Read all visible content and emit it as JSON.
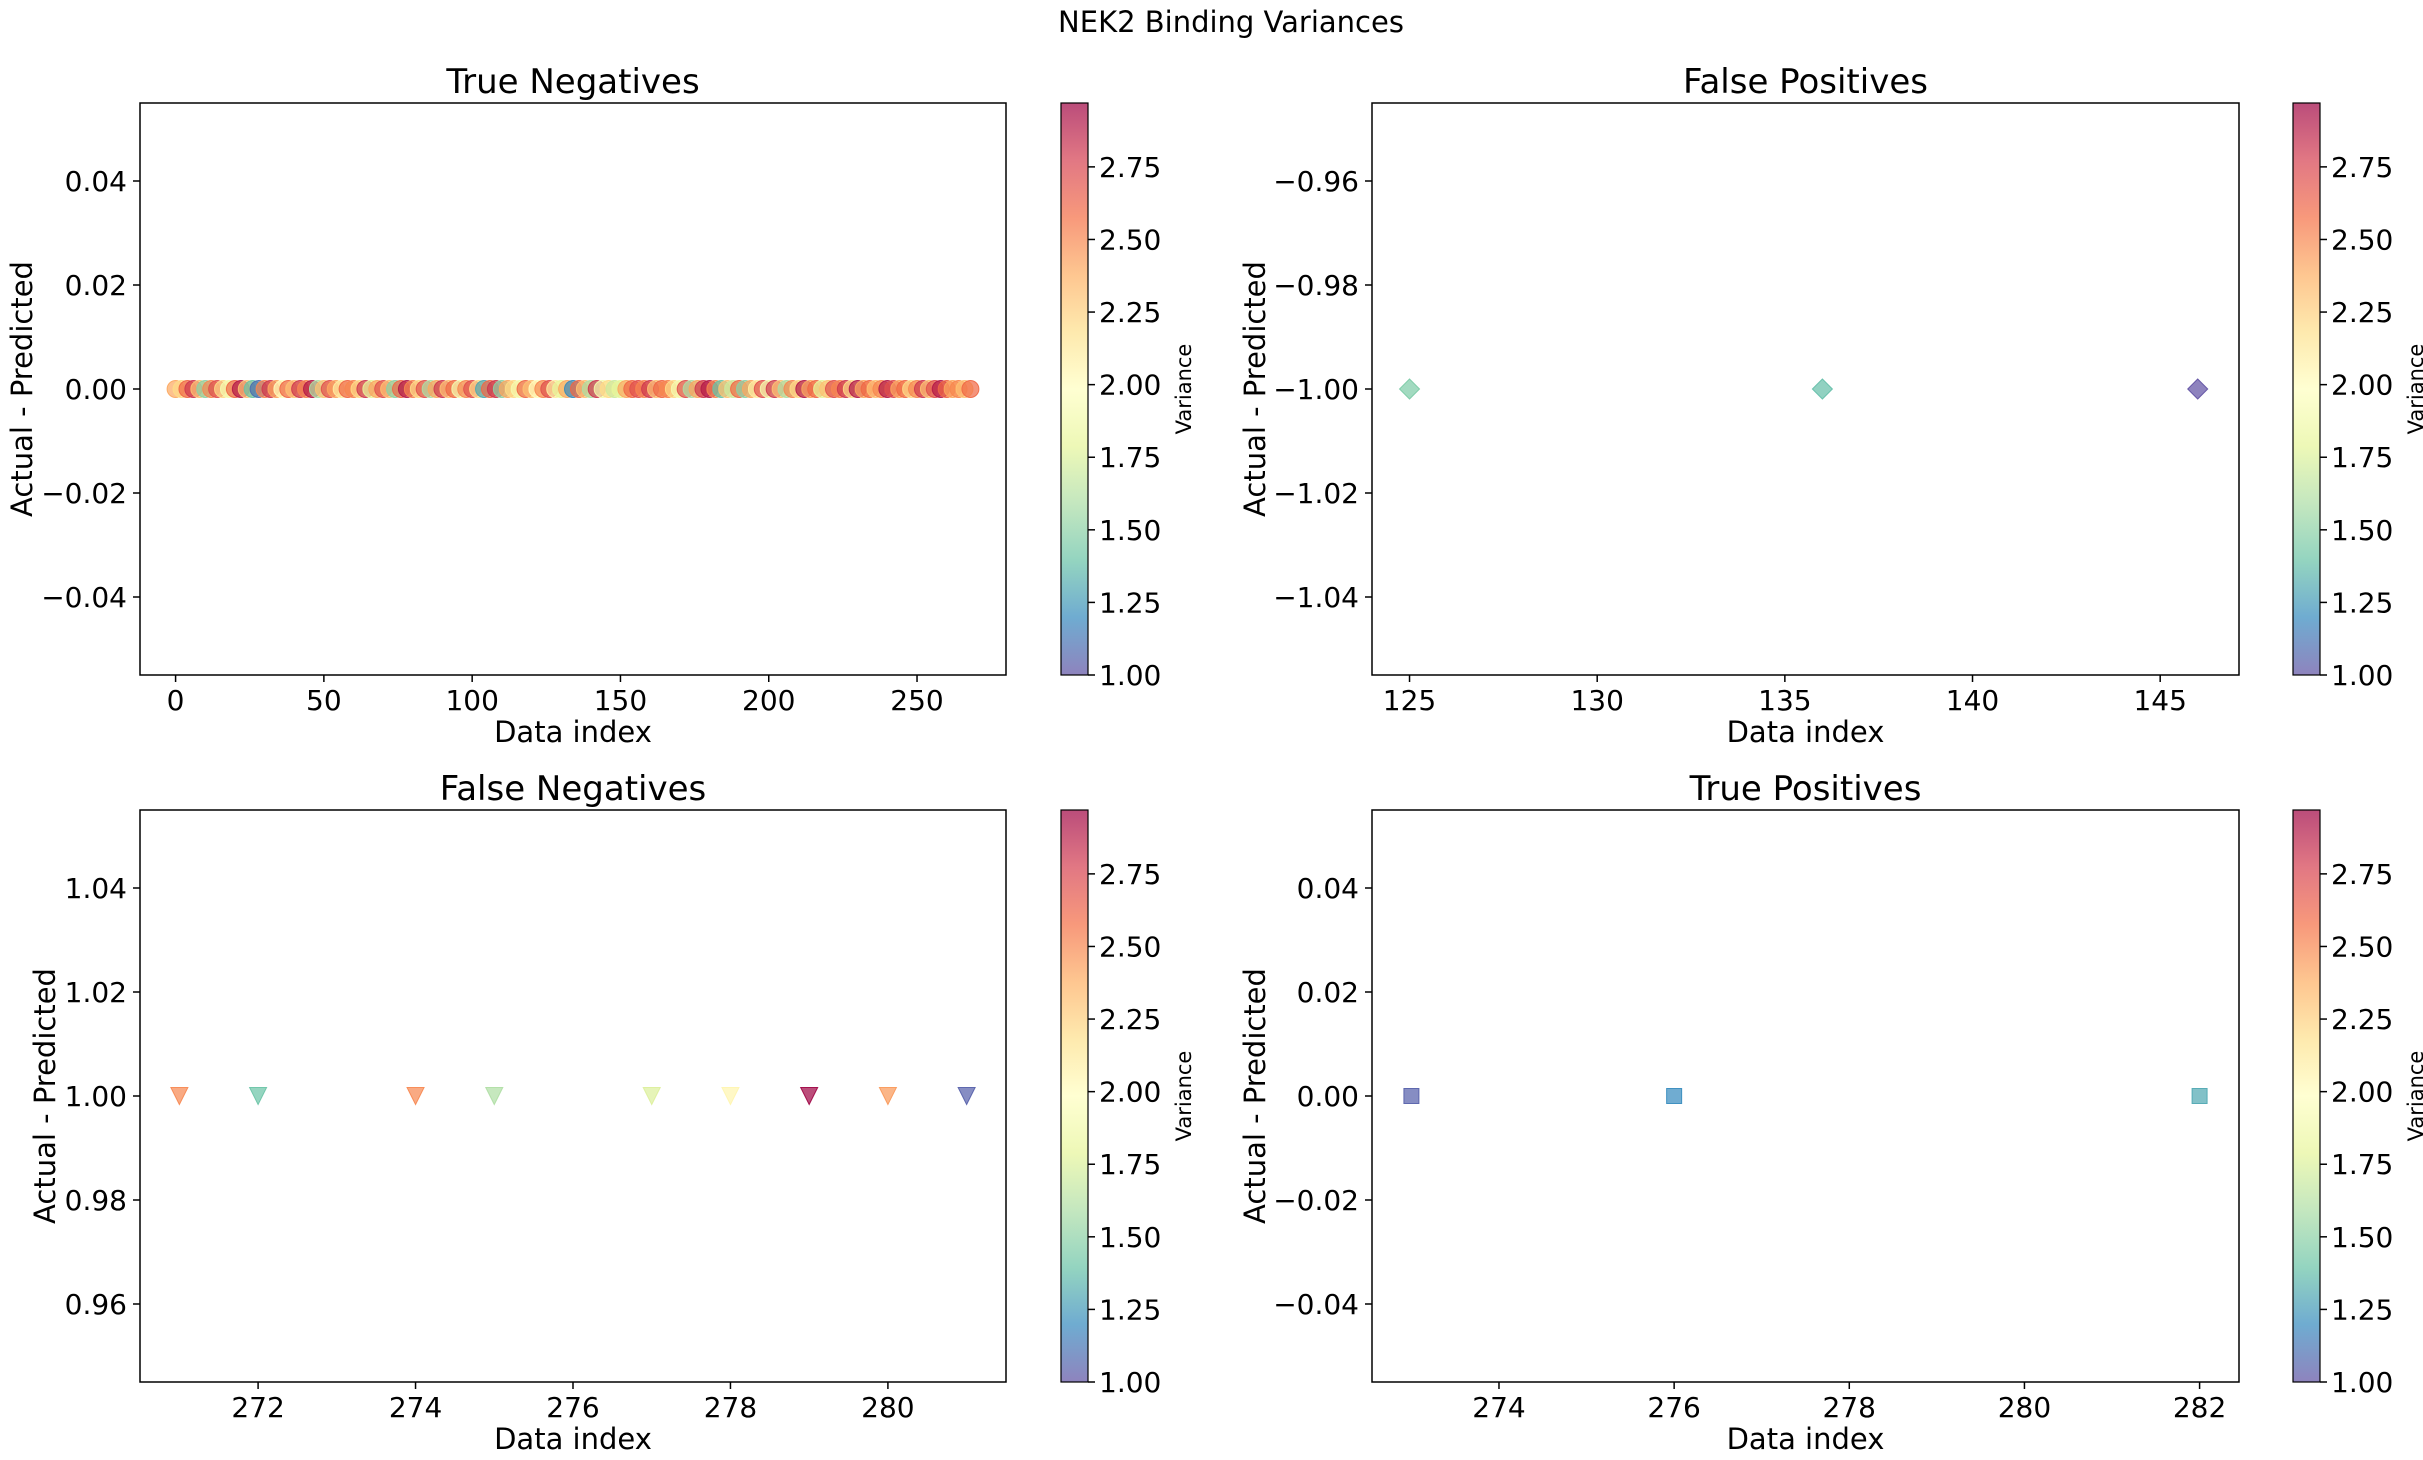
{
  "suptitle": "NEK2 Binding Variances",
  "colorbar_label": "Variance",
  "colorbar_ticks": [
    "1.00",
    "1.25",
    "1.50",
    "1.75",
    "2.00",
    "2.25",
    "2.50",
    "2.75"
  ],
  "colorbar_range": [
    1.0,
    2.97
  ],
  "colormap": [
    "#5e4fa2",
    "#3288bd",
    "#66c2a5",
    "#abdda4",
    "#e6f598",
    "#ffffbf",
    "#fee08b",
    "#fdae61",
    "#f46d43",
    "#d53e4f",
    "#9e0142"
  ],
  "colormap_name": "Spectral_r",
  "point_alpha": 0.7,
  "chart_data": [
    {
      "type": "scatter",
      "title": "True Negatives",
      "xlabel": "Data index",
      "ylabel": "Actual - Predicted",
      "marker": "circle",
      "xlim": [
        -12,
        280
      ],
      "ylim": [
        -0.055,
        0.055
      ],
      "xticks": [
        0,
        50,
        100,
        150,
        200,
        250
      ],
      "yticks": [
        -0.04,
        -0.02,
        0.0,
        0.02,
        0.04
      ],
      "ytick_labels": [
        "−0.04",
        "−0.02",
        "0.00",
        "0.02",
        "0.04"
      ],
      "x": [
        0,
        2,
        4,
        6,
        8,
        10,
        12,
        14,
        16,
        18,
        20,
        22,
        24,
        26,
        28,
        30,
        32,
        34,
        36,
        38,
        40,
        42,
        44,
        46,
        48,
        50,
        52,
        54,
        56,
        58,
        60,
        62,
        64,
        66,
        68,
        70,
        72,
        74,
        76,
        78,
        80,
        82,
        84,
        86,
        88,
        90,
        92,
        94,
        96,
        98,
        100,
        102,
        104,
        106,
        108,
        110,
        112,
        114,
        116,
        118,
        120,
        122,
        124,
        126,
        128,
        130,
        132,
        134,
        136,
        138,
        140,
        142,
        144,
        146,
        148,
        150,
        152,
        154,
        156,
        158,
        160,
        162,
        164,
        166,
        168,
        170,
        172,
        174,
        176,
        178,
        180,
        182,
        184,
        186,
        188,
        190,
        192,
        194,
        196,
        198,
        200,
        202,
        204,
        206,
        208,
        210,
        212,
        214,
        216,
        218,
        220,
        222,
        224,
        226,
        228,
        230,
        232,
        234,
        236,
        238,
        240,
        242,
        244,
        246,
        248,
        250,
        252,
        254,
        256,
        258,
        260,
        262,
        264,
        266,
        268
      ],
      "y": [
        0,
        0,
        0,
        0,
        0,
        0,
        0,
        0,
        0,
        0,
        0,
        0,
        0,
        0,
        0,
        0,
        0,
        0,
        0,
        0,
        0,
        0,
        0,
        0,
        0,
        0,
        0,
        0,
        0,
        0,
        0,
        0,
        0,
        0,
        0,
        0,
        0,
        0,
        0,
        0,
        0,
        0,
        0,
        0,
        0,
        0,
        0,
        0,
        0,
        0,
        0,
        0,
        0,
        0,
        0,
        0,
        0,
        0,
        0,
        0,
        0,
        0,
        0,
        0,
        0,
        0,
        0,
        0,
        0,
        0,
        0,
        0,
        0,
        0,
        0,
        0,
        0,
        0,
        0,
        0,
        0,
        0,
        0,
        0,
        0,
        0,
        0,
        0,
        0,
        0,
        0,
        0,
        0,
        0,
        0,
        0,
        0,
        0,
        0,
        0,
        0,
        0,
        0,
        0,
        0,
        0,
        0,
        0,
        0,
        0,
        0,
        0,
        0,
        0,
        0,
        0,
        0,
        0,
        0,
        0,
        0,
        0,
        0,
        0,
        0,
        0,
        0,
        0,
        0,
        0,
        0,
        0,
        0,
        0,
        0
      ],
      "variance": [
        2.4,
        2.2,
        2.6,
        2.8,
        2.3,
        1.5,
        2.5,
        2.7,
        2.2,
        1.9,
        2.6,
        2.9,
        2.3,
        1.4,
        1.1,
        2.5,
        2.8,
        2.4,
        2.0,
        2.6,
        2.3,
        2.8,
        2.5,
        2.9,
        1.6,
        2.3,
        2.7,
        2.4,
        2.1,
        2.6,
        2.5,
        2.2,
        2.8,
        1.8,
        2.4,
        2.7,
        2.3,
        1.5,
        2.6,
        2.9,
        2.5,
        2.2,
        2.7,
        1.6,
        2.4,
        2.8,
        2.3,
        2.6,
        1.9,
        2.5,
        2.7,
        2.2,
        1.3,
        2.6,
        2.8,
        1.5,
        2.4,
        2.2,
        1.9,
        2.6,
        2.3,
        2.0,
        2.5,
        2.7,
        2.1,
        1.8,
        2.4,
        1.2,
        2.6,
        2.3,
        1.6,
        2.8,
        1.9,
        2.2,
        1.7,
        1.8,
        2.4,
        2.6,
        2.7,
        2.5,
        2.8,
        2.3,
        2.6,
        2.5,
        2.2,
        1.9,
        2.7,
        1.6,
        2.4,
        2.8,
        2.9,
        2.5,
        1.4,
        2.3,
        1.7,
        2.6,
        1.5,
        2.4,
        2.1,
        2.7,
        1.9,
        2.8,
        2.3,
        1.6,
        2.5,
        2.2,
        2.9,
        2.4,
        2.6,
        1.8,
        2.3,
        2.7,
        2.5,
        2.8,
        2.2,
        2.9,
        2.4,
        2.6,
        2.3,
        2.5,
        2.9,
        2.7,
        2.4,
        2.6,
        2.2,
        2.5,
        2.8,
        2.3,
        2.7,
        2.9,
        2.6,
        2.4,
        2.5,
        2.3,
        2.6
      ]
    },
    {
      "type": "scatter",
      "title": "False Positives",
      "xlabel": "Data index",
      "ylabel": "Actual - Predicted",
      "marker": "diamond",
      "xlim": [
        124,
        147.1
      ],
      "ylim": [
        -1.055,
        -0.945
      ],
      "xticks": [
        125,
        130,
        135,
        140,
        145
      ],
      "yticks": [
        -1.04,
        -1.02,
        -1.0,
        -0.98,
        -0.96
      ],
      "ytick_labels": [
        "−1.04",
        "−1.02",
        "−1.00",
        "−0.98",
        "−0.96"
      ],
      "x": [
        125,
        136,
        146
      ],
      "y": [
        -1.0,
        -1.0,
        -1.0
      ],
      "variance": [
        1.45,
        1.38,
        1.0
      ]
    },
    {
      "type": "scatter",
      "title": "False Negatives",
      "xlabel": "Data index",
      "ylabel": "Actual - Predicted",
      "marker": "triangle_down",
      "xlim": [
        270.5,
        281.5
      ],
      "ylim": [
        0.945,
        1.055
      ],
      "xticks": [
        272,
        274,
        276,
        278,
        280
      ],
      "yticks": [
        0.96,
        0.98,
        1.0,
        1.02,
        1.04
      ],
      "ytick_labels": [
        "0.96",
        "0.98",
        "1.00",
        "1.02",
        "1.04"
      ],
      "x": [
        271,
        272,
        274,
        275,
        277,
        278,
        279,
        280,
        281
      ],
      "y": [
        1,
        1,
        1,
        1,
        1,
        1,
        1,
        1,
        1
      ],
      "variance": [
        2.5,
        1.4,
        2.5,
        1.6,
        1.75,
        2.05,
        2.97,
        2.45,
        1.05
      ]
    },
    {
      "type": "scatter",
      "title": "True Positives",
      "xlabel": "Data index",
      "ylabel": "Actual - Predicted",
      "marker": "square",
      "xlim": [
        272.55,
        282.45
      ],
      "ylim": [
        -0.055,
        0.055
      ],
      "xticks": [
        274,
        276,
        278,
        280,
        282
      ],
      "yticks": [
        -0.04,
        -0.02,
        0.0,
        0.02,
        0.04
      ],
      "ytick_labels": [
        "−0.04",
        "−0.02",
        "0.00",
        "0.02",
        "0.04"
      ],
      "x": [
        273,
        276,
        282
      ],
      "y": [
        0,
        0,
        0
      ],
      "variance": [
        1.05,
        1.2,
        1.3
      ]
    }
  ]
}
